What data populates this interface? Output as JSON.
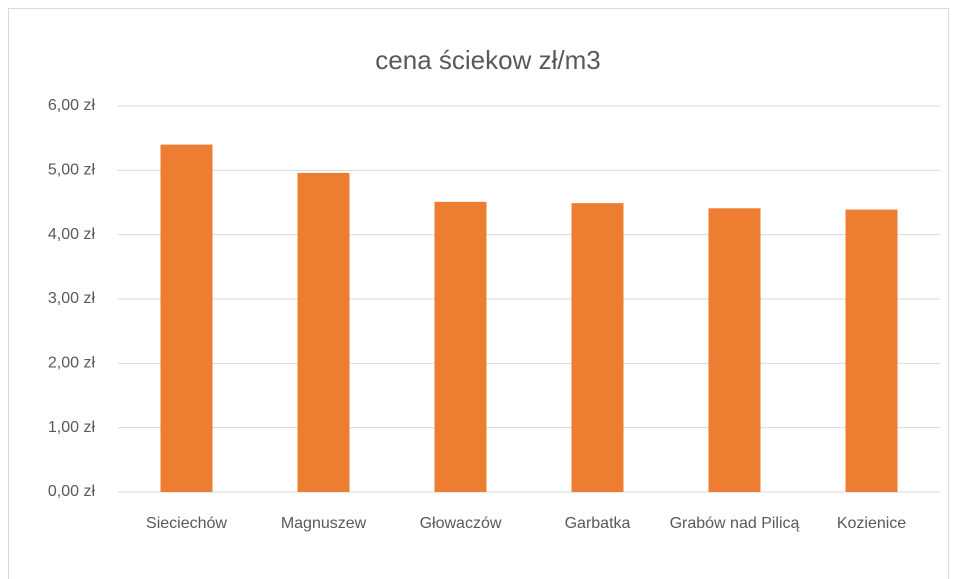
{
  "chart_data": {
    "type": "bar",
    "title": "cena ściekow zł/m3",
    "categories": [
      "Sieciechów",
      "Magnuszew",
      "Głowaczów",
      "Garbatka",
      "Grabów nad Pilicą",
      "Kozienice"
    ],
    "values": [
      5.4,
      4.96,
      4.51,
      4.49,
      4.41,
      4.39
    ],
    "color": "#ed7d31",
    "ylim": [
      0,
      6
    ],
    "yticks": [
      {
        "value": 0,
        "label": "0,00 zł"
      },
      {
        "value": 1,
        "label": "1,00 zł"
      },
      {
        "value": 2,
        "label": "2,00 zł"
      },
      {
        "value": 3,
        "label": "3,00 zł"
      },
      {
        "value": 4,
        "label": "4,00 zł"
      },
      {
        "value": 5,
        "label": "5,00 zł"
      },
      {
        "value": 6,
        "label": "6,00 zł"
      }
    ],
    "grid": true
  }
}
